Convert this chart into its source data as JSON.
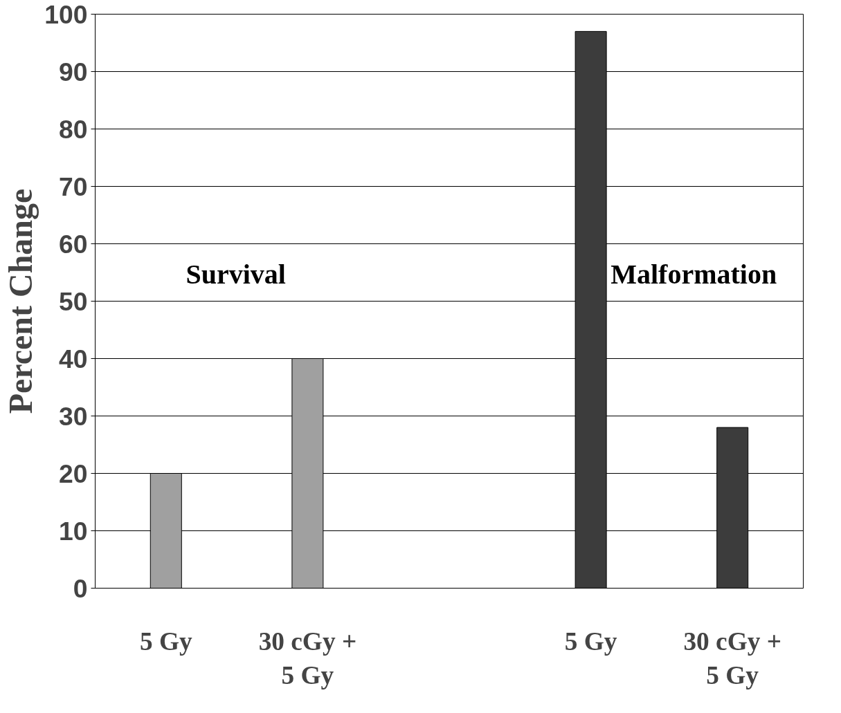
{
  "chart_data": {
    "type": "bar",
    "ylabel": "Percent Change",
    "categories": [
      "5 Gy",
      "30 cGy +\n5 Gy",
      null,
      "5 Gy",
      "30 cGy +\n5 Gy"
    ],
    "series": [
      {
        "name": "Survival",
        "color": "#a0a0a0",
        "values": [
          20,
          40,
          null,
          null,
          null
        ]
      },
      {
        "name": "Malformation",
        "color": "#3c3c3c",
        "values": [
          null,
          null,
          null,
          97,
          28
        ]
      }
    ],
    "ylim": [
      0,
      100
    ],
    "yticks": [
      0,
      10,
      20,
      30,
      40,
      50,
      60,
      70,
      80,
      90,
      100
    ],
    "grid": "y"
  }
}
